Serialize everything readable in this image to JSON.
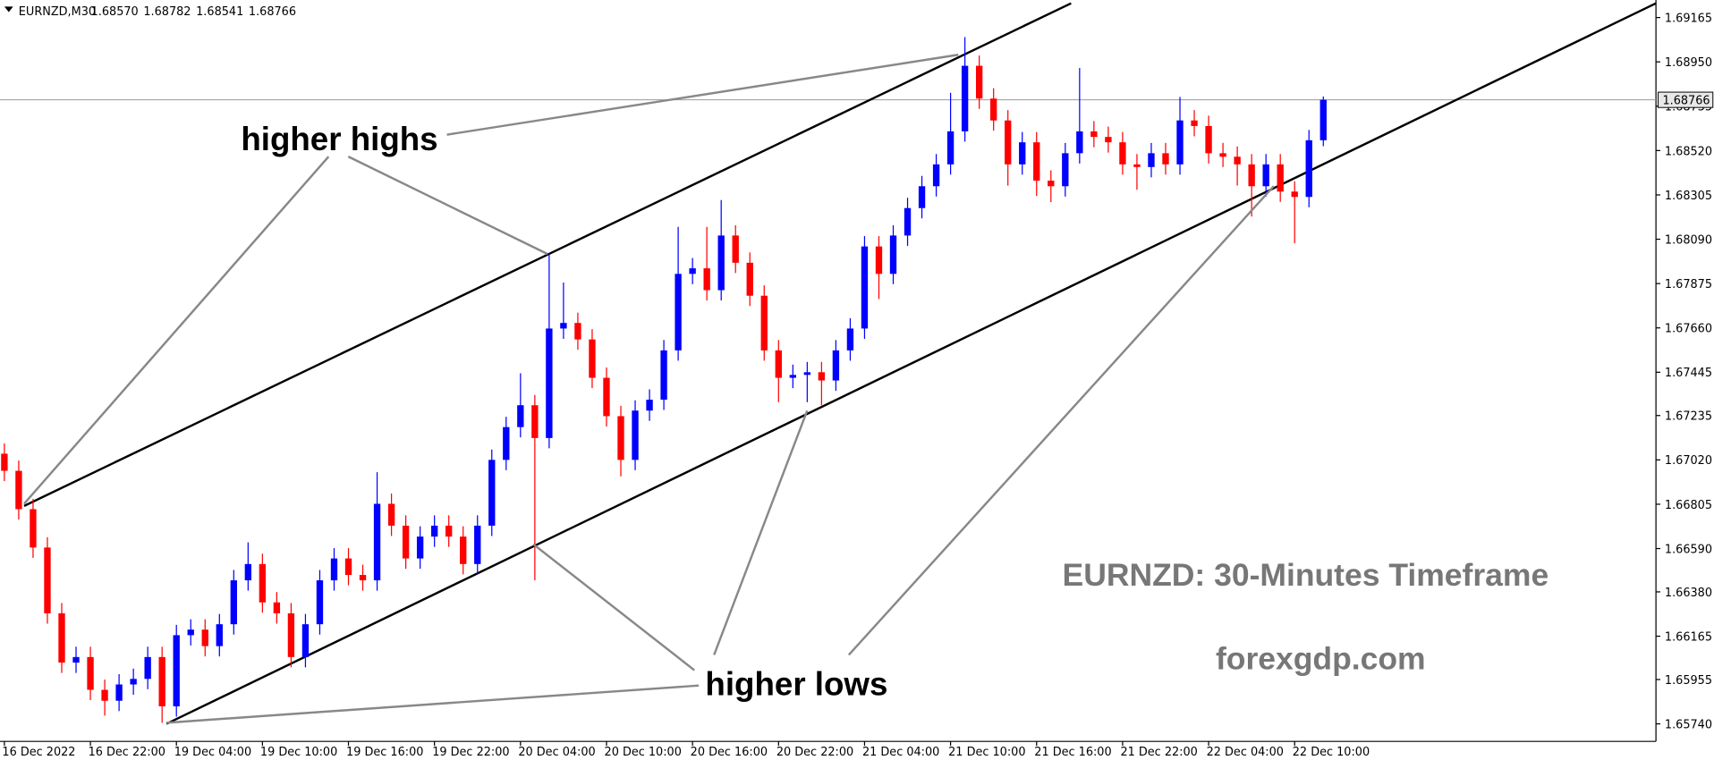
{
  "chart_data": {
    "type": "candlestick",
    "title": "EURNZD,M30",
    "title_values": [
      "1.68570",
      "1.68782",
      "1.68541",
      "1.68766"
    ],
    "categories": [
      "16 Dec 2022",
      null,
      null,
      null,
      null,
      null,
      "16 Dec 22:00",
      null,
      null,
      null,
      null,
      null,
      "19 Dec 04:00",
      null,
      null,
      null,
      null,
      null,
      "19 Dec 10:00",
      null,
      null,
      null,
      null,
      null,
      "19 Dec 16:00",
      null,
      null,
      null,
      null,
      null,
      "19 Dec 22:00",
      null,
      null,
      null,
      null,
      null,
      "20 Dec 04:00",
      null,
      null,
      null,
      null,
      null,
      "20 Dec 10:00",
      null,
      null,
      null,
      null,
      null,
      "20 Dec 16:00",
      null,
      null,
      null,
      null,
      null,
      "20 Dec 22:00",
      null,
      null,
      null,
      null,
      null,
      "21 Dec 04:00",
      null,
      null,
      null,
      null,
      null,
      "21 Dec 10:00",
      null,
      null,
      null,
      null,
      null,
      "21 Dec 16:00",
      null,
      null,
      null,
      null,
      null,
      "21 Dec 22:00",
      null,
      null,
      null,
      null,
      null,
      "22 Dec 04:00",
      null,
      null,
      null,
      null,
      null,
      "22 Dec 10:00",
      null,
      null
    ],
    "open": [
      1.6705,
      1.66967,
      1.66781,
      1.66595,
      1.66276,
      1.66037,
      1.66064,
      1.65905,
      1.65852,
      1.65931,
      1.65958,
      1.66064,
      1.65825,
      1.6617,
      1.66197,
      1.66117,
      1.66223,
      1.66436,
      1.66515,
      1.66329,
      1.66276,
      1.66064,
      1.66223,
      1.66436,
      1.66542,
      1.66462,
      1.66436,
      1.66807,
      1.66701,
      1.66542,
      1.66648,
      1.66701,
      1.66648,
      1.66515,
      1.66701,
      1.6702,
      1.67179,
      1.67285,
      1.67126,
      1.67657,
      1.67684,
      1.67604,
      1.67418,
      1.67232,
      1.6702,
      1.67259,
      1.67312,
      1.67551,
      1.67922,
      1.67949,
      1.67843,
      1.68108,
      1.67976,
      1.67816,
      1.67551,
      1.67418,
      1.67432,
      1.67445,
      1.67405,
      1.67551,
      1.67657,
      1.68055,
      1.67922,
      1.68108,
      1.68241,
      1.68347,
      1.68453,
      1.68613,
      1.68931,
      1.68772,
      1.68666,
      1.68453,
      1.6856,
      1.68374,
      1.68347,
      1.68507,
      1.68613,
      1.68586,
      1.6856,
      1.68453,
      1.6844,
      1.68507,
      1.68453,
      1.68666,
      1.68639,
      1.68507,
      1.6849,
      1.68453,
      1.68347,
      1.68453,
      1.68321,
      1.68295,
      1.6857
    ],
    "high": [
      1.671,
      1.67017,
      1.66831,
      1.66645,
      1.66326,
      1.66114,
      1.66114,
      1.65955,
      1.65981,
      1.66008,
      1.66114,
      1.66114,
      1.6622,
      1.66247,
      1.66247,
      1.66273,
      1.66486,
      1.6662,
      1.66565,
      1.66379,
      1.66326,
      1.66273,
      1.66486,
      1.66592,
      1.66592,
      1.66512,
      1.6696,
      1.66857,
      1.66751,
      1.66698,
      1.66751,
      1.66751,
      1.66698,
      1.66751,
      1.6707,
      1.67229,
      1.6744,
      1.67335,
      1.68018,
      1.6788,
      1.67734,
      1.67654,
      1.67468,
      1.67282,
      1.67309,
      1.67362,
      1.67601,
      1.6815,
      1.67999,
      1.6815,
      1.6828,
      1.68158,
      1.68026,
      1.67866,
      1.67601,
      1.67482,
      1.67495,
      1.67495,
      1.67601,
      1.67707,
      1.68105,
      1.68105,
      1.68158,
      1.68291,
      1.68397,
      1.68503,
      1.688,
      1.6907,
      1.68981,
      1.68822,
      1.68716,
      1.6861,
      1.6861,
      1.68424,
      1.68557,
      1.6892,
      1.68663,
      1.68636,
      1.6861,
      1.68503,
      1.68557,
      1.68557,
      1.6878,
      1.68716,
      1.68689,
      1.68557,
      1.6854,
      1.68503,
      1.68503,
      1.68503,
      1.68371,
      1.6862,
      1.68782
    ],
    "low": [
      1.66917,
      1.66731,
      1.66545,
      1.66226,
      1.65987,
      1.65987,
      1.65855,
      1.6578,
      1.65802,
      1.65881,
      1.65908,
      1.65745,
      1.65775,
      1.6612,
      1.66067,
      1.66067,
      1.66173,
      1.66386,
      1.66279,
      1.66226,
      1.66014,
      1.66014,
      1.66173,
      1.66386,
      1.66412,
      1.66386,
      1.66386,
      1.66651,
      1.66492,
      1.66492,
      1.66598,
      1.66598,
      1.66465,
      1.66465,
      1.66651,
      1.6697,
      1.67129,
      1.66436,
      1.67076,
      1.67607,
      1.67554,
      1.67368,
      1.67182,
      1.6694,
      1.6697,
      1.67209,
      1.67262,
      1.67501,
      1.67872,
      1.67793,
      1.67793,
      1.67926,
      1.67766,
      1.67501,
      1.673,
      1.67368,
      1.673,
      1.67285,
      1.67355,
      1.67501,
      1.67607,
      1.678,
      1.67872,
      1.68058,
      1.68191,
      1.68297,
      1.68403,
      1.68563,
      1.68722,
      1.68616,
      1.6835,
      1.68403,
      1.683,
      1.6827,
      1.68297,
      1.68457,
      1.68536,
      1.6851,
      1.68403,
      1.6833,
      1.6839,
      1.68403,
      1.68403,
      1.68589,
      1.68457,
      1.6844,
      1.6835,
      1.682,
      1.68297,
      1.68271,
      1.6807,
      1.68245,
      1.68541
    ],
    "close": [
      1.66967,
      1.66781,
      1.66595,
      1.66276,
      1.66037,
      1.66064,
      1.65905,
      1.65852,
      1.65931,
      1.65958,
      1.66064,
      1.65825,
      1.6617,
      1.66197,
      1.66117,
      1.66223,
      1.66436,
      1.66515,
      1.66329,
      1.66276,
      1.66064,
      1.66223,
      1.66436,
      1.66542,
      1.66462,
      1.66436,
      1.66807,
      1.66701,
      1.66542,
      1.66648,
      1.66701,
      1.66648,
      1.66515,
      1.66701,
      1.6702,
      1.67179,
      1.67285,
      1.67126,
      1.67657,
      1.67684,
      1.67604,
      1.67418,
      1.67232,
      1.6702,
      1.67259,
      1.67312,
      1.67551,
      1.67922,
      1.67949,
      1.67843,
      1.68108,
      1.67976,
      1.67816,
      1.67551,
      1.67418,
      1.67432,
      1.67445,
      1.67405,
      1.67551,
      1.67657,
      1.68055,
      1.67922,
      1.68108,
      1.68241,
      1.68347,
      1.68453,
      1.68613,
      1.68931,
      1.68772,
      1.68666,
      1.68453,
      1.6856,
      1.68374,
      1.68347,
      1.68507,
      1.68613,
      1.68586,
      1.6856,
      1.68453,
      1.6844,
      1.68507,
      1.68453,
      1.68666,
      1.68639,
      1.68507,
      1.6849,
      1.68453,
      1.68347,
      1.68453,
      1.68321,
      1.68295,
      1.6857,
      1.68766
    ],
    "up_color": "#0000ff",
    "down_color": "#ff0000",
    "ylim": [
      1.65655,
      1.6925
    ],
    "yticks": [
      1.69165,
      {
        "value": 1.6895,
        "label": "1.68950"
      },
      1.68735,
      {
        "value": 1.6852,
        "label": "1.68520"
      },
      1.68305,
      {
        "value": 1.6809,
        "label": "1.68090"
      },
      1.67875,
      {
        "value": 1.6766,
        "label": "1.67660"
      },
      1.67445,
      1.67235,
      {
        "value": 1.6702,
        "label": "1.67020"
      },
      1.66805,
      {
        "value": 1.6659,
        "label": "1.66590"
      },
      {
        "value": 1.6638,
        "label": "1.66380"
      },
      1.66165,
      1.65955,
      {
        "value": 1.6574,
        "label": "1.65740"
      }
    ],
    "price_line": {
      "value": 1.68766,
      "label": "1.68766"
    },
    "annotations": [
      "higher highs",
      "higher lows"
    ],
    "watermark": [
      "EURNZD: 30-Minutes Timeframe",
      "forexgdp.com"
    ]
  }
}
